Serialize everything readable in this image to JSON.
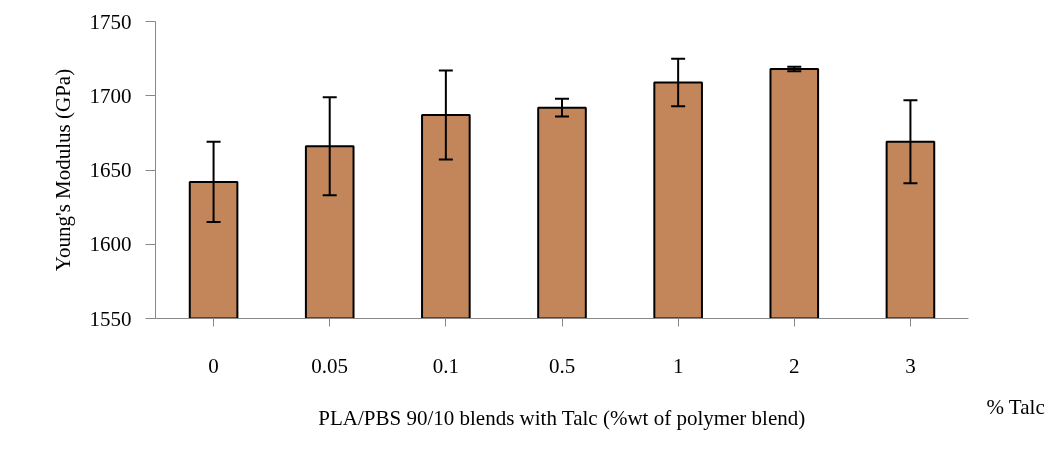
{
  "chart_data": {
    "type": "bar",
    "xlabel": "PLA/PBS 90/10 blends with Talc (%wt of polymer blend)",
    "ylabel": "Young's Modulus (GPa)",
    "categories": [
      "0",
      "0.05",
      "0.1",
      "0.5",
      "1",
      "2",
      "3"
    ],
    "values": [
      1642,
      1666,
      1687,
      1692,
      1709,
      1718,
      1669
    ],
    "errors": [
      27,
      33,
      30,
      6,
      16,
      1.5,
      28
    ],
    "color": "#c2865a",
    "ylim": [
      1550,
      1750
    ],
    "yticks": [
      1550,
      1600,
      1650,
      1700,
      1750
    ],
    "grid": false,
    "annotations": [
      "% Talc"
    ]
  }
}
